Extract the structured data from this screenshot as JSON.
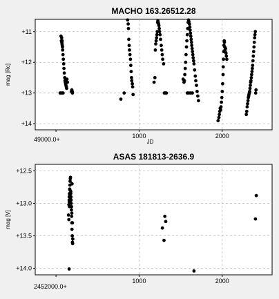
{
  "chart_data": [
    {
      "type": "scatter",
      "title": "MACHO 163.26512.28",
      "xlabel": "JD",
      "ylabel": "mag [Rc]",
      "x_offset_label": "49000.0+",
      "xlim": [
        -250,
        2600
      ],
      "ylim": [
        14.2,
        10.6
      ],
      "y_inverted": true,
      "xticks": [
        1000,
        2000
      ],
      "yticks": [
        11,
        12,
        13,
        14
      ],
      "ytick_labels": [
        "+11",
        "+12",
        "+13",
        "+14"
      ],
      "grid": true,
      "marker_color": "#000000",
      "series": [
        {
          "x": [
            50,
            60,
            75,
            85,
            60,
            65,
            68,
            70,
            72,
            74,
            76,
            78,
            80,
            84,
            88,
            92,
            96,
            100,
            105,
            108,
            112,
            116,
            120,
            124,
            128,
            132,
            138,
            185,
            190,
            195,
            198,
            780,
            820,
            862,
            868,
            872,
            876,
            880,
            884,
            890,
            896,
            900,
            904,
            908,
            912,
            918,
            922,
            927,
            1180,
            1190,
            1195,
            1200,
            1205,
            1210,
            1215,
            1218,
            1222,
            1226,
            1230,
            1234,
            1238,
            1242,
            1246,
            1252,
            1258,
            1266,
            1272,
            1278,
            1284,
            1295,
            1303,
            1310,
            1320,
            1328,
            1530,
            1540,
            1545,
            1550,
            1555,
            1560,
            1565,
            1570,
            1575,
            1580,
            1585,
            1590,
            1595,
            1600,
            1605,
            1610,
            1614,
            1618,
            1622,
            1626,
            1630,
            1634,
            1638,
            1642,
            1646,
            1650,
            1655,
            1660,
            1668,
            1676,
            1682,
            1690,
            1698,
            1706,
            1714,
            1580,
            1600,
            1620,
            1640,
            1950,
            1960,
            1965,
            1970,
            1975,
            1980,
            1985,
            1990,
            1995,
            2000,
            2005,
            2010,
            2012,
            2015,
            2018,
            2021,
            2024,
            2027,
            2030,
            2033,
            2036,
            2040,
            2045,
            2050,
            2055,
            2290,
            2295,
            2300,
            2305,
            2310,
            2314,
            2318,
            2322,
            2326,
            2330,
            2334,
            2338,
            2342,
            2346,
            2350,
            2354,
            2358,
            2362,
            2366,
            2370,
            2374,
            2378,
            2382,
            2386,
            2390,
            2394,
            2398,
            2402,
            2406
          ],
          "y": [
            13.0,
            13.0,
            13.0,
            13.0,
            11.15,
            11.3,
            11.2,
            11.35,
            11.4,
            11.3,
            11.45,
            11.5,
            11.6,
            11.75,
            11.9,
            12.05,
            12.2,
            12.35,
            12.5,
            12.6,
            12.65,
            12.7,
            12.75,
            12.8,
            12.85,
            12.55,
            12.65,
            12.95,
            12.9,
            12.95,
            13.0,
            13.2,
            13.0,
            10.62,
            10.75,
            10.9,
            11.25,
            11.45,
            11.6,
            11.75,
            11.9,
            12.1,
            12.3,
            12.5,
            12.6,
            12.7,
            12.8,
            13.05,
            12.65,
            12.5,
            11.6,
            11.4,
            11.3,
            11.2,
            11.1,
            11.0,
            10.7,
            10.65,
            10.7,
            10.75,
            10.8,
            10.9,
            11.0,
            11.1,
            11.25,
            11.45,
            11.6,
            11.75,
            11.9,
            12.05,
            13.0,
            13.0,
            13.0,
            13.0,
            12.55,
            12.65,
            12.6,
            12.4,
            12.2,
            12.0,
            11.75,
            11.5,
            11.3,
            11.1,
            10.9,
            10.7,
            10.62,
            10.68,
            10.75,
            10.85,
            10.95,
            11.05,
            11.15,
            11.25,
            11.35,
            11.45,
            11.55,
            11.65,
            11.75,
            11.85,
            11.95,
            12.05,
            12.25,
            12.45,
            12.6,
            12.75,
            12.95,
            13.1,
            13.25,
            13.0,
            13.0,
            13.0,
            13.0,
            13.9,
            13.8,
            13.7,
            13.6,
            13.5,
            13.55,
            13.45,
            13.3,
            13.15,
            12.95,
            12.7,
            12.4,
            12.15,
            11.9,
            11.65,
            11.45,
            11.3,
            11.35,
            11.5,
            11.6,
            11.65,
            11.55,
            11.7,
            11.8,
            11.9,
            13.7,
            13.6,
            13.45,
            13.35,
            13.25,
            13.15,
            13.1,
            13.05,
            13.0,
            12.95,
            12.85,
            12.75,
            12.65,
            12.6,
            12.5,
            12.4,
            12.3,
            12.2,
            12.1,
            11.95,
            11.8,
            11.65,
            11.5,
            11.35,
            11.2,
            11.1,
            11.0,
            13.0,
            12.9
          ]
        }
      ]
    },
    {
      "type": "scatter",
      "title": "ASAS 181813-2636.9",
      "xlabel": "",
      "ylabel": "mag [V]",
      "x_offset_label": "2452000.0+",
      "xlim": [
        -250,
        2600
      ],
      "ylim": [
        14.1,
        12.4
      ],
      "y_inverted": true,
      "xticks": [
        1000,
        2000
      ],
      "yticks": [
        12.5,
        13.0,
        13.5,
        14.0
      ],
      "ytick_labels": [
        "+12.5",
        "+13.0",
        "+13.5",
        "+14.0"
      ],
      "grid": true,
      "marker_color": "#000000",
      "series": [
        {
          "x": [
            150,
            155,
            158,
            160,
            162,
            165,
            168,
            170,
            172,
            175,
            178,
            180,
            182,
            185,
            188,
            190,
            192,
            195,
            198,
            200,
            160,
            162,
            166,
            170,
            174,
            178,
            182,
            186,
            190,
            194,
            198,
            202,
            155,
            158,
            1280,
            1300,
            1310,
            1320,
            1660,
            2400,
            2410
          ],
          "y": [
            13.18,
            13.02,
            12.95,
            12.9,
            12.85,
            12.78,
            12.72,
            12.66,
            12.62,
            12.6,
            12.82,
            12.9,
            13.0,
            13.1,
            13.2,
            13.3,
            13.4,
            13.5,
            13.6,
            13.62,
            12.98,
            13.05,
            12.88,
            12.8,
            12.92,
            12.85,
            12.95,
            13.05,
            13.15,
            12.7,
            13.3,
            13.55,
            13.25,
            14.01,
            13.38,
            13.57,
            13.2,
            13.28,
            14.04,
            13.24,
            12.88
          ]
        }
      ]
    }
  ]
}
